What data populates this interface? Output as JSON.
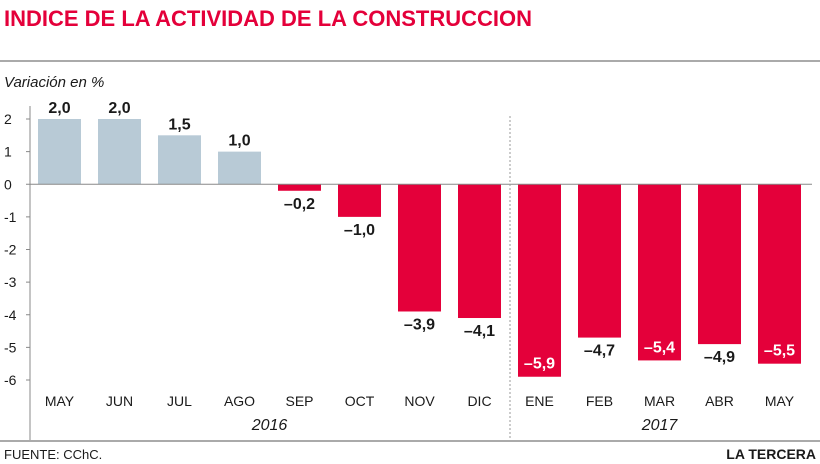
{
  "chart_data": {
    "type": "bar",
    "title": "INDICE DE LA ACTIVIDAD DE LA CONSTRUCCION",
    "ylabel": "Variación en %",
    "xlabel": "",
    "ylim": [
      -6,
      2
    ],
    "yticks": [
      "2",
      "1",
      "0",
      "-1",
      "-2",
      "-3",
      "-4",
      "-5",
      "-6"
    ],
    "categories": [
      "MAY",
      "JUN",
      "JUL",
      "AGO",
      "SEP",
      "OCT",
      "NOV",
      "DIC",
      "ENE",
      "FEB",
      "MAR",
      "ABR",
      "MAY"
    ],
    "values": [
      2.0,
      2.0,
      1.5,
      1.0,
      -0.2,
      -1.0,
      -3.9,
      -4.1,
      -5.9,
      -4.7,
      -5.4,
      -4.9,
      -5.5
    ],
    "value_labels": [
      "2,0",
      "2,0",
      "1,5",
      "1,0",
      "–0,2",
      "–1,0",
      "–3,9",
      "–4,1",
      "–5,9",
      "–4,7",
      "–5,4",
      "–4,9",
      "–5,5"
    ],
    "groups": [
      {
        "label": "2016",
        "start": 0,
        "end": 7
      },
      {
        "label": "2017",
        "start": 8,
        "end": 12
      }
    ],
    "colors": {
      "positive": "#b8cad6",
      "negative": "#e4003a",
      "title": "#e4003a"
    },
    "grid": false,
    "legend": "none"
  },
  "footer": {
    "source": "FUENTE: CChC.",
    "brand": "LA TERCERA"
  }
}
